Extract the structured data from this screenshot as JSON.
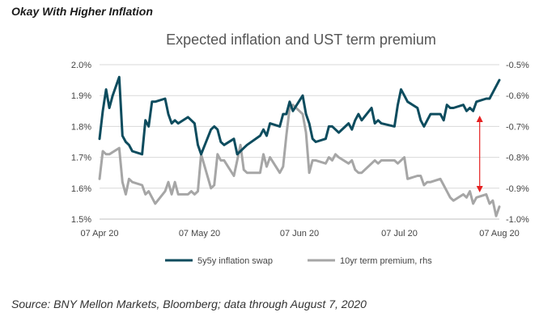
{
  "page": {
    "heading": "Okay With Higher Inflation",
    "source": "Source: BNY Mellon Markets, Bloomberg; data through August 7, 2020"
  },
  "chart_data": {
    "type": "line",
    "title": "Expected inflation and UST term premium",
    "x_ticks": [
      "07 Apr 20",
      "07 May 20",
      "07 Jun 20",
      "07 Jul 20",
      "07 Aug 20"
    ],
    "x_range": [
      "2020-04-07",
      "2020-08-07"
    ],
    "y_left": {
      "ticks": [
        "1.5%",
        "1.6%",
        "1.7%",
        "1.8%",
        "1.9%",
        "2.0%"
      ],
      "range": [
        1.5,
        2.0
      ],
      "unit": "%"
    },
    "y_right": {
      "ticks": [
        "-1.0%",
        "-0.9%",
        "-0.8%",
        "-0.7%",
        "-0.6%",
        "-0.5%"
      ],
      "range": [
        -1.0,
        -0.5
      ],
      "unit": "%"
    },
    "legend": {
      "position": "bottom"
    },
    "grid": "horizontal",
    "colors": {
      "swap": "#0d4c5e",
      "premium": "#a6a6a6",
      "arrow": "#e52020"
    },
    "annotation": "double-headed red arrow near August showing widening gap between the two series",
    "series": [
      {
        "name": "5y5y inflation swap",
        "axis": "left",
        "x": [
          "2020-04-07",
          "2020-04-08",
          "2020-04-09",
          "2020-04-10",
          "2020-04-11",
          "2020-04-13",
          "2020-04-14",
          "2020-04-15",
          "2020-04-16",
          "2020-04-17",
          "2020-04-20",
          "2020-04-21",
          "2020-04-22",
          "2020-04-23",
          "2020-04-24",
          "2020-04-27",
          "2020-04-28",
          "2020-04-29",
          "2020-04-30",
          "2020-05-01",
          "2020-05-04",
          "2020-05-05",
          "2020-05-06",
          "2020-05-07",
          "2020-05-08",
          "2020-05-11",
          "2020-05-12",
          "2020-05-13",
          "2020-05-14",
          "2020-05-15",
          "2020-05-18",
          "2020-05-19",
          "2020-05-20",
          "2020-05-21",
          "2020-05-22",
          "2020-05-26",
          "2020-05-27",
          "2020-05-28",
          "2020-05-29",
          "2020-06-01",
          "2020-06-02",
          "2020-06-03",
          "2020-06-04",
          "2020-06-05",
          "2020-06-08",
          "2020-06-09",
          "2020-06-10",
          "2020-06-11",
          "2020-06-12",
          "2020-06-15",
          "2020-06-16",
          "2020-06-17",
          "2020-06-18",
          "2020-06-19",
          "2020-06-22",
          "2020-06-23",
          "2020-06-24",
          "2020-06-25",
          "2020-06-26",
          "2020-06-29",
          "2020-06-30",
          "2020-07-01",
          "2020-07-02",
          "2020-07-06",
          "2020-07-07",
          "2020-07-08",
          "2020-07-09",
          "2020-07-10",
          "2020-07-13",
          "2020-07-14",
          "2020-07-15",
          "2020-07-16",
          "2020-07-17",
          "2020-07-20",
          "2020-07-21",
          "2020-07-22",
          "2020-07-23",
          "2020-07-24",
          "2020-07-27",
          "2020-07-28",
          "2020-07-29",
          "2020-07-30",
          "2020-07-31",
          "2020-08-03",
          "2020-08-04",
          "2020-08-05",
          "2020-08-06",
          "2020-08-07"
        ],
        "values": [
          1.76,
          1.85,
          1.92,
          1.86,
          1.9,
          1.96,
          1.77,
          1.75,
          1.74,
          1.72,
          1.71,
          1.82,
          1.8,
          1.88,
          1.88,
          1.89,
          1.84,
          1.81,
          1.82,
          1.81,
          1.83,
          1.82,
          1.81,
          1.74,
          1.71,
          1.79,
          1.8,
          1.79,
          1.75,
          1.74,
          1.76,
          1.71,
          1.72,
          1.73,
          1.74,
          1.77,
          1.79,
          1.77,
          1.81,
          1.8,
          1.84,
          1.84,
          1.88,
          1.85,
          1.9,
          1.84,
          1.81,
          1.76,
          1.75,
          1.76,
          1.8,
          1.8,
          1.79,
          1.78,
          1.81,
          1.79,
          1.82,
          1.84,
          1.82,
          1.86,
          1.81,
          1.82,
          1.81,
          1.8,
          1.87,
          1.92,
          1.9,
          1.88,
          1.86,
          1.82,
          1.8,
          1.82,
          1.84,
          1.84,
          1.82,
          1.87,
          1.86,
          1.86,
          1.87,
          1.85,
          1.86,
          1.85,
          1.88,
          1.89,
          1.89,
          1.91,
          1.93,
          1.95
        ]
      },
      {
        "name": "10yr term premium, rhs",
        "axis": "right",
        "x": [
          "2020-04-07",
          "2020-04-08",
          "2020-04-09",
          "2020-04-10",
          "2020-04-13",
          "2020-04-14",
          "2020-04-15",
          "2020-04-16",
          "2020-04-17",
          "2020-04-20",
          "2020-04-21",
          "2020-04-22",
          "2020-04-23",
          "2020-04-24",
          "2020-04-27",
          "2020-04-28",
          "2020-04-29",
          "2020-04-30",
          "2020-05-01",
          "2020-05-04",
          "2020-05-05",
          "2020-05-06",
          "2020-05-07",
          "2020-05-08",
          "2020-05-11",
          "2020-05-12",
          "2020-05-13",
          "2020-05-14",
          "2020-05-15",
          "2020-05-18",
          "2020-05-19",
          "2020-05-20",
          "2020-05-21",
          "2020-05-22",
          "2020-05-26",
          "2020-05-27",
          "2020-05-28",
          "2020-05-29",
          "2020-06-01",
          "2020-06-02",
          "2020-06-03",
          "2020-06-04",
          "2020-06-05",
          "2020-06-08",
          "2020-06-09",
          "2020-06-10",
          "2020-06-11",
          "2020-06-12",
          "2020-06-15",
          "2020-06-16",
          "2020-06-17",
          "2020-06-18",
          "2020-06-19",
          "2020-06-22",
          "2020-06-23",
          "2020-06-24",
          "2020-06-25",
          "2020-06-26",
          "2020-06-29",
          "2020-06-30",
          "2020-07-01",
          "2020-07-02",
          "2020-07-06",
          "2020-07-07",
          "2020-07-08",
          "2020-07-09",
          "2020-07-10",
          "2020-07-13",
          "2020-07-14",
          "2020-07-15",
          "2020-07-16",
          "2020-07-17",
          "2020-07-20",
          "2020-07-21",
          "2020-07-22",
          "2020-07-23",
          "2020-07-24",
          "2020-07-27",
          "2020-07-28",
          "2020-07-29",
          "2020-07-30",
          "2020-07-31",
          "2020-08-03",
          "2020-08-04",
          "2020-08-05",
          "2020-08-06",
          "2020-08-07"
        ],
        "values": [
          -0.87,
          -0.78,
          -0.79,
          -0.79,
          -0.77,
          -0.88,
          -0.92,
          -0.87,
          -0.88,
          -0.89,
          -0.92,
          -0.91,
          -0.93,
          -0.95,
          -0.91,
          -0.88,
          -0.92,
          -0.88,
          -0.92,
          -0.92,
          -0.91,
          -0.92,
          -0.91,
          -0.79,
          -0.9,
          -0.89,
          -0.79,
          -0.81,
          -0.81,
          -0.86,
          -0.81,
          -0.76,
          -0.84,
          -0.85,
          -0.85,
          -0.79,
          -0.83,
          -0.8,
          -0.85,
          -0.83,
          -0.73,
          -0.64,
          -0.63,
          -0.66,
          -0.72,
          -0.85,
          -0.81,
          -0.81,
          -0.82,
          -0.8,
          -0.81,
          -0.79,
          -0.8,
          -0.82,
          -0.81,
          -0.84,
          -0.85,
          -0.85,
          -0.82,
          -0.81,
          -0.82,
          -0.81,
          -0.81,
          -0.82,
          -0.81,
          -0.8,
          -0.87,
          -0.86,
          -0.86,
          -0.89,
          -0.88,
          -0.88,
          -0.87,
          -0.89,
          -0.91,
          -0.93,
          -0.94,
          -0.92,
          -0.93,
          -0.91,
          -0.95,
          -0.93,
          -0.92,
          -0.95,
          -0.94,
          -0.99,
          -0.96
        ]
      }
    ]
  }
}
